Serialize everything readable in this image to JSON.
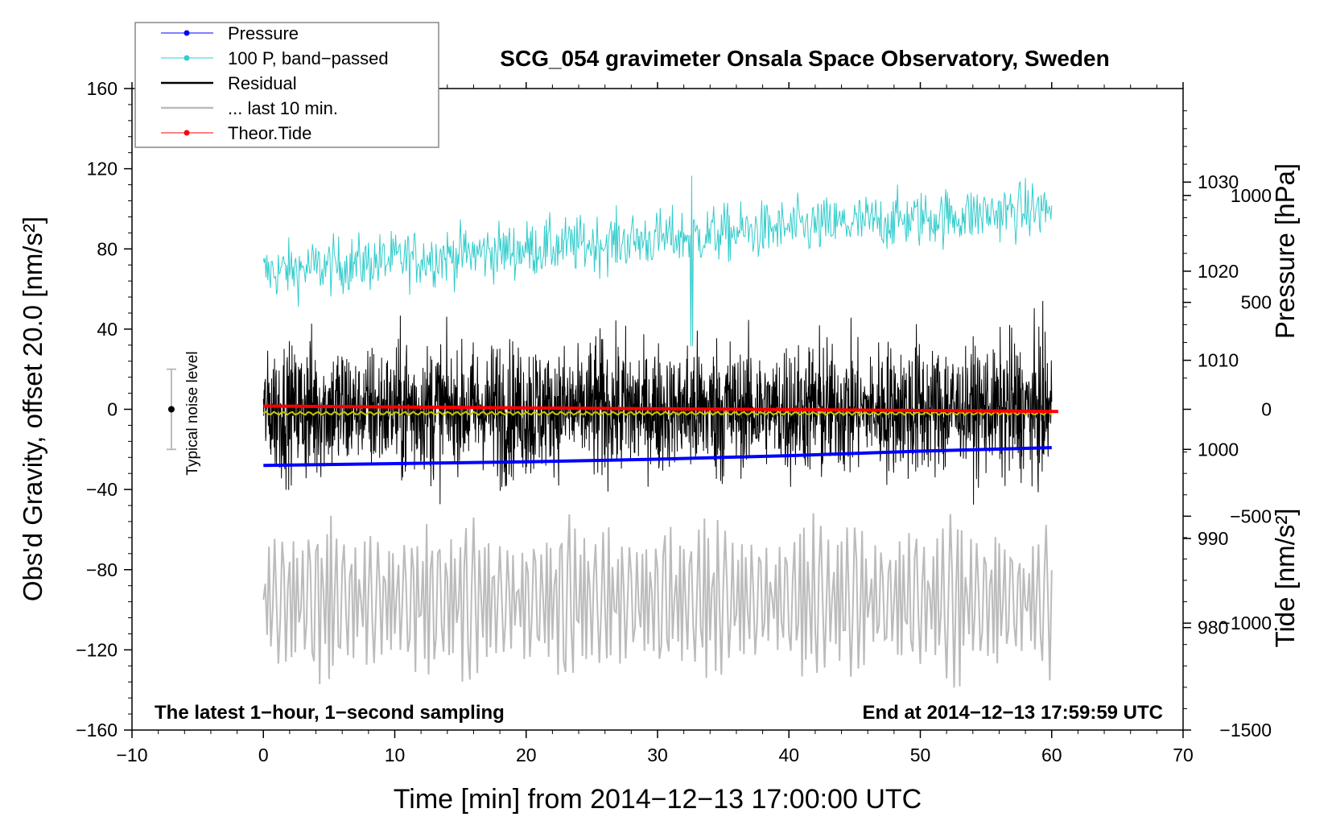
{
  "chart_data": {
    "type": "line",
    "title": "SCG_054 gravimeter Onsala Space Observatory, Sweden",
    "xlabel": "Time [min] from 2014−12−13 17:00:00 UTC",
    "ylabel_left": "Obs'd Gravity, offset 20.0 [nm/s²]",
    "ylabel_right_top": "Pressure [hPa]",
    "ylabel_right_bottom": "Tide [nm/s²]",
    "xlim": [
      -10,
      70
    ],
    "ylim": [
      -160,
      160
    ],
    "pressure_lim": [
      968.5,
      1040.5
    ],
    "tide_lim": [
      -1500,
      1500
    ],
    "x_ticks": [
      "−10",
      "0",
      "10",
      "20",
      "30",
      "40",
      "50",
      "60",
      "70"
    ],
    "x_tick_values": [
      -10,
      0,
      10,
      20,
      30,
      40,
      50,
      60,
      70
    ],
    "y_ticks": [
      "160",
      "120",
      "80",
      "40",
      "0",
      "−40",
      "−80",
      "−120",
      "−160"
    ],
    "y_tick_values": [
      160,
      120,
      80,
      40,
      0,
      -40,
      -80,
      -120,
      -160
    ],
    "pressure_ticks": [
      "1030",
      "1020",
      "1010",
      "1000",
      "990",
      "980"
    ],
    "pressure_tick_values": [
      1030,
      1020,
      1010,
      1000,
      990,
      980
    ],
    "tide_ticks": [
      "1000",
      "500",
      "0",
      "−500",
      "−1000",
      "−1500"
    ],
    "tide_tick_values": [
      1000,
      500,
      0,
      -500,
      -1000,
      -1500
    ],
    "legend": [
      {
        "label": "Pressure",
        "color": "#0000ff",
        "marker": true
      },
      {
        "label": "100 P, band−passed",
        "color": "#33cccc",
        "marker": true
      },
      {
        "label": "Residual",
        "color": "#000000",
        "marker": false
      },
      {
        "label": "... last 10 min.",
        "color": "#bbbbbb",
        "marker": false
      },
      {
        "label": "Theor.Tide",
        "color": "#ff0000",
        "marker": true
      }
    ],
    "legend_position": "top-left",
    "annotations": {
      "bottom_left": "The latest 1−hour, 1−second sampling",
      "bottom_right": "End at 2014−12−13 17:59:59 UTC",
      "noise_label": "Typical noise level"
    },
    "noise_bar": {
      "x": -7,
      "center": 0,
      "low": -20,
      "high": 20
    },
    "series": [
      {
        "name": "Pressure",
        "axis": "pressure",
        "color": "#0000ff",
        "x": [
          0,
          10,
          20,
          30,
          40,
          50,
          60
        ],
        "values": [
          998.2,
          998.4,
          998.6,
          998.9,
          999.3,
          999.8,
          1000.2
        ]
      },
      {
        "name": "100 P, band−passed",
        "axis": "left",
        "color": "#33cccc",
        "x_range": [
          0,
          60
        ],
        "mean_start": 68,
        "mean_end": 100,
        "amplitude": 9
      },
      {
        "name": "Residual",
        "axis": "left",
        "color": "#000000",
        "x_range": [
          0,
          60
        ],
        "mean": 0,
        "amplitude": 24
      },
      {
        "name": "Residual smoothed",
        "axis": "left",
        "color": "#c8c800",
        "x_range": [
          0,
          60
        ],
        "mean": -2,
        "amplitude": 1
      },
      {
        "name": "... last 10 min.",
        "axis": "left",
        "color": "#bbbbbb",
        "x_range": [
          0,
          60
        ],
        "mean": -95,
        "amplitude": 45
      },
      {
        "name": "Theor.Tide",
        "axis": "tide",
        "color": "#ff0000",
        "x": [
          0,
          60.5
        ],
        "values": [
          15,
          -10
        ]
      }
    ]
  }
}
